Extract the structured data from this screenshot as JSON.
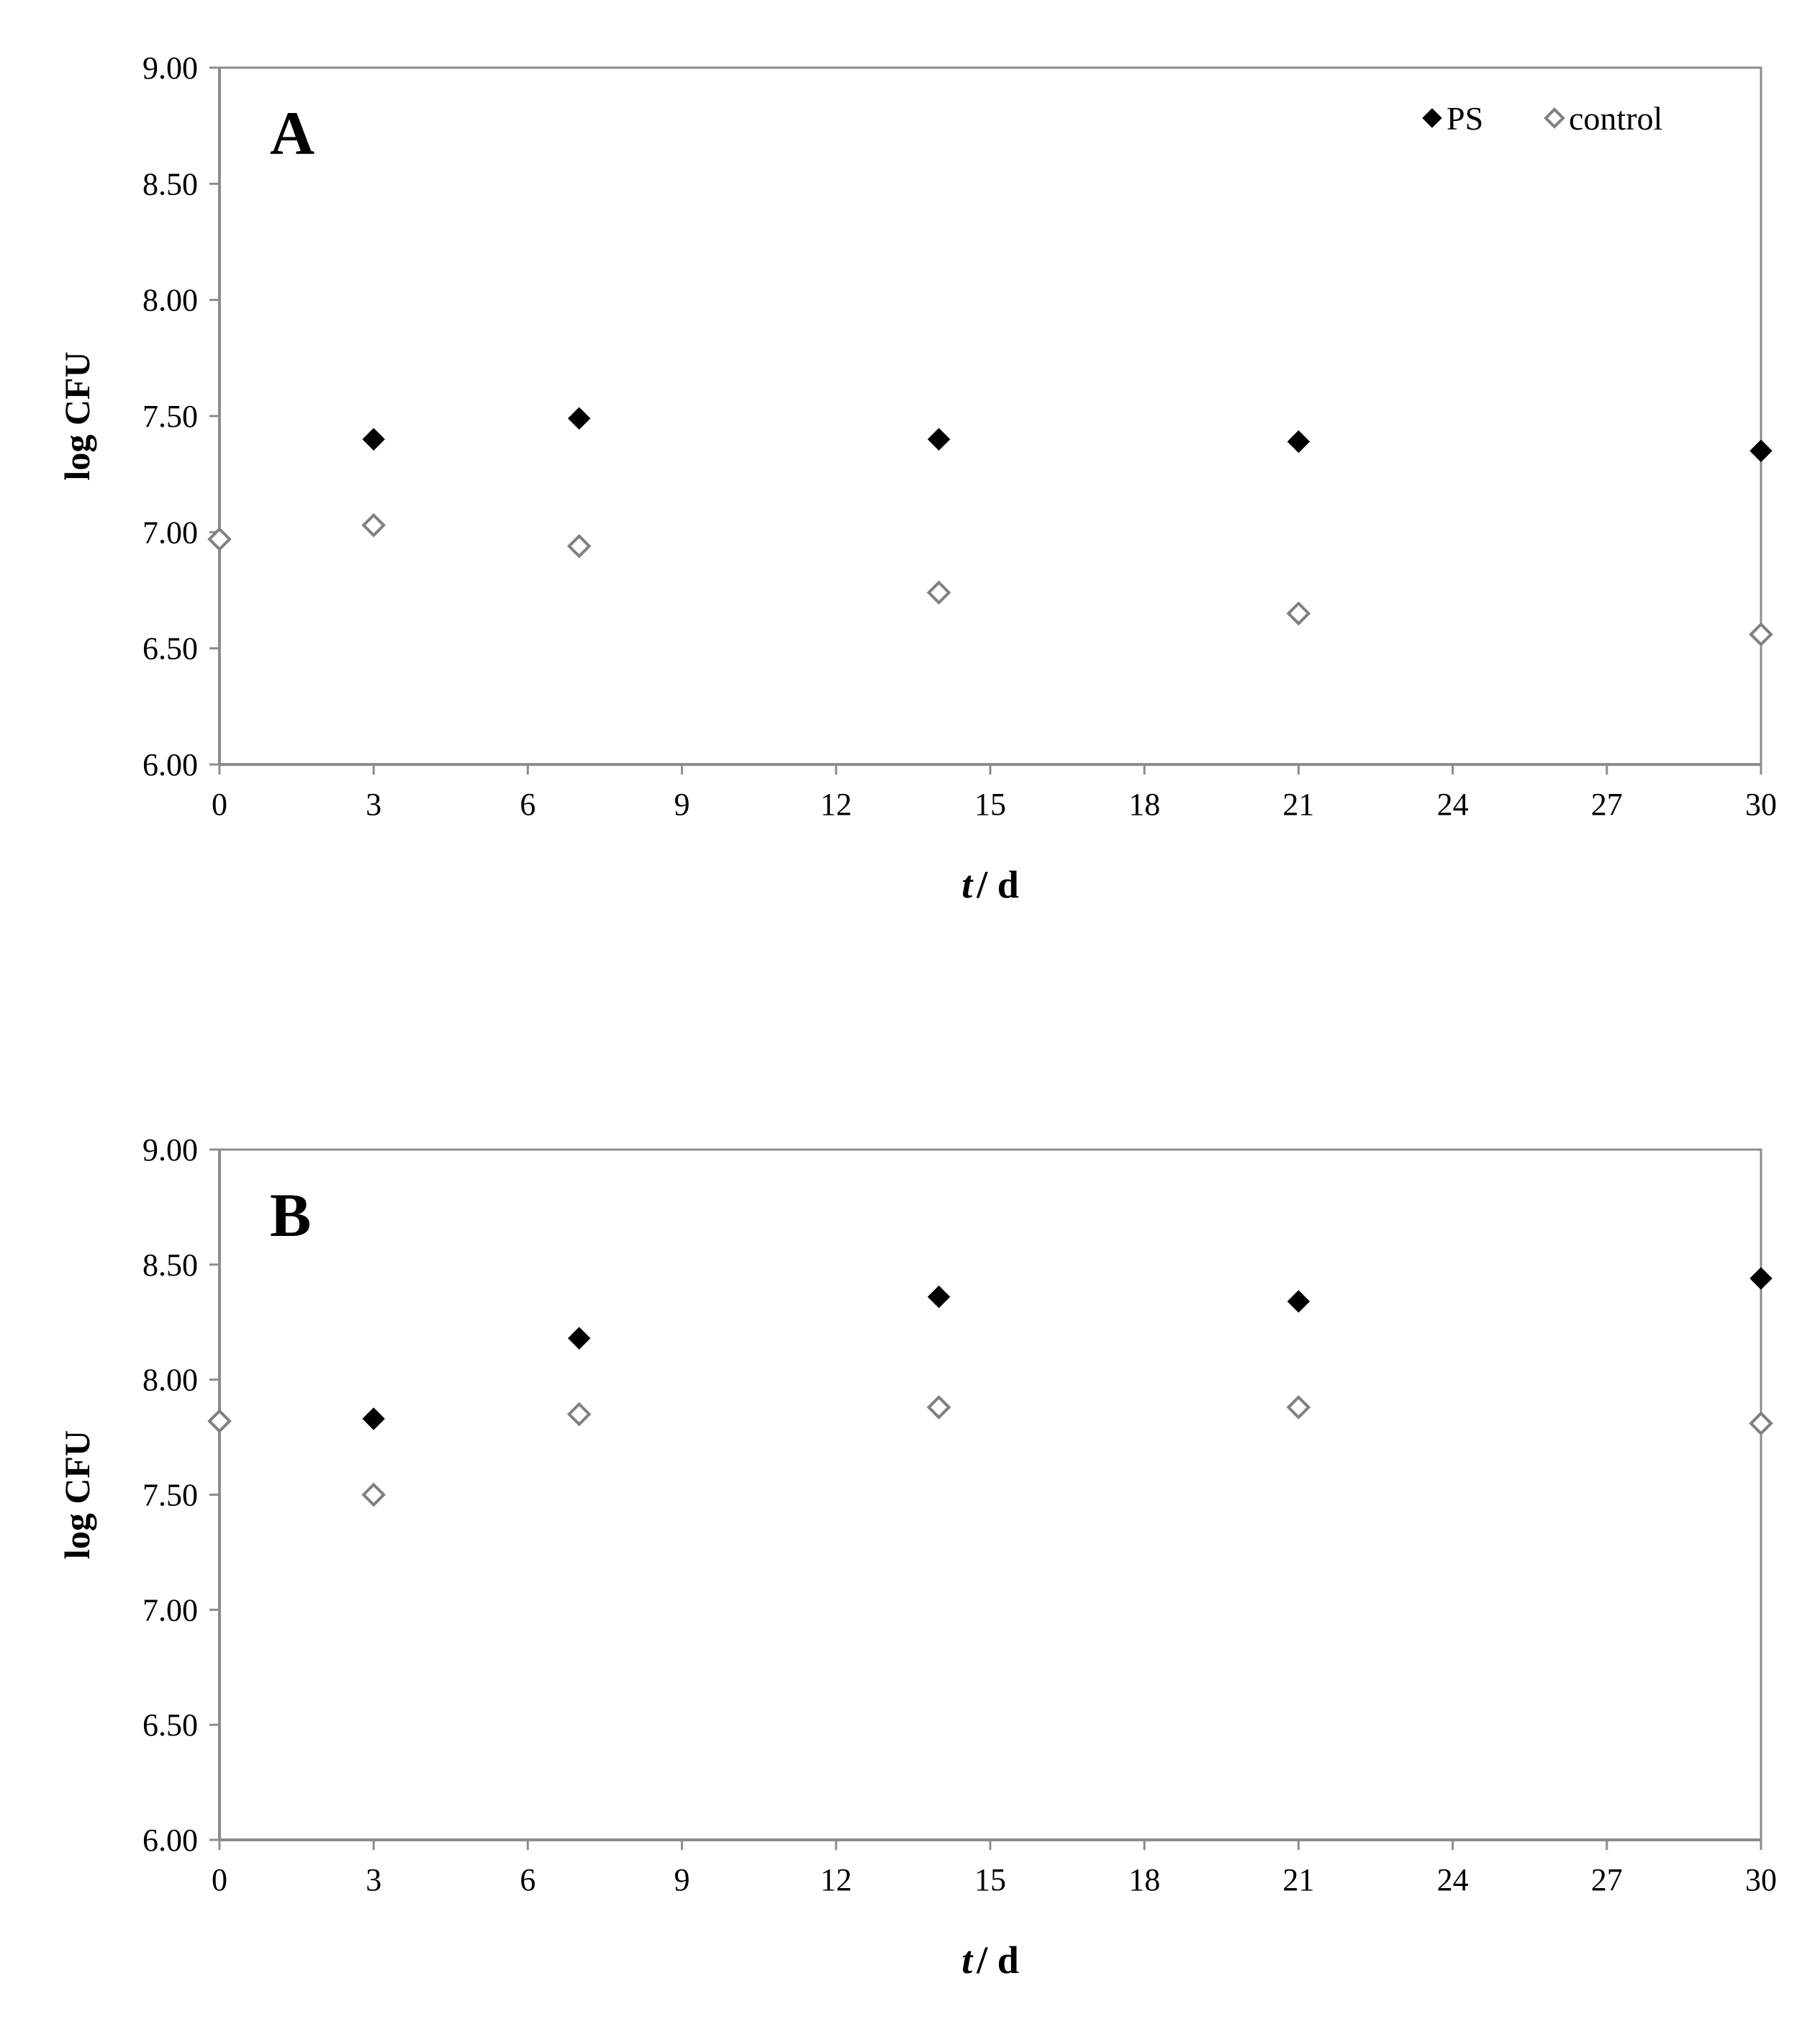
{
  "chart_data": [
    {
      "type": "scatter",
      "panel_label": "A",
      "title": "",
      "xlabel_italic": "t",
      "xlabel_rest": "/ d",
      "ylabel": "log CFU",
      "xlim": [
        0,
        30
      ],
      "ylim": [
        6.0,
        9.0
      ],
      "x_ticks": [
        "0",
        "3",
        "6",
        "9",
        "12",
        "15",
        "18",
        "21",
        "24",
        "27",
        "30"
      ],
      "y_ticks": [
        "6.00",
        "6.50",
        "7.00",
        "7.50",
        "8.00",
        "8.50",
        "9.00"
      ],
      "legend": {
        "position": "top-right",
        "entries": [
          "PS",
          "control"
        ]
      },
      "series": [
        {
          "name": "PS",
          "marker": "filled-diamond",
          "color": "#000000",
          "x": [
            3,
            7,
            14,
            21,
            30
          ],
          "y": [
            7.4,
            7.49,
            7.4,
            7.39,
            7.35
          ]
        },
        {
          "name": "control",
          "marker": "open-diamond",
          "color": "#808080",
          "x": [
            0,
            3,
            7,
            14,
            21,
            30
          ],
          "y": [
            6.97,
            7.03,
            6.94,
            6.74,
            6.65,
            6.56
          ]
        }
      ]
    },
    {
      "type": "scatter",
      "panel_label": "B",
      "title": "",
      "xlabel_italic": "t",
      "xlabel_rest": "/ d",
      "ylabel": "log CFU",
      "xlim": [
        0,
        30
      ],
      "ylim": [
        6.0,
        9.0
      ],
      "x_ticks": [
        "0",
        "3",
        "6",
        "9",
        "12",
        "15",
        "18",
        "21",
        "24",
        "27",
        "30"
      ],
      "y_ticks": [
        "6.00",
        "6.50",
        "7.00",
        "7.50",
        "8.00",
        "8.50",
        "9.00"
      ],
      "legend": null,
      "series": [
        {
          "name": "PS",
          "marker": "filled-diamond",
          "color": "#000000",
          "x": [
            3,
            7,
            14,
            21,
            30
          ],
          "y": [
            7.83,
            8.18,
            8.36,
            8.34,
            8.44
          ]
        },
        {
          "name": "control",
          "marker": "open-diamond",
          "color": "#808080",
          "x": [
            0,
            3,
            7,
            14,
            21,
            30
          ],
          "y": [
            7.82,
            7.5,
            7.85,
            7.88,
            7.88,
            7.81
          ]
        }
      ]
    }
  ]
}
